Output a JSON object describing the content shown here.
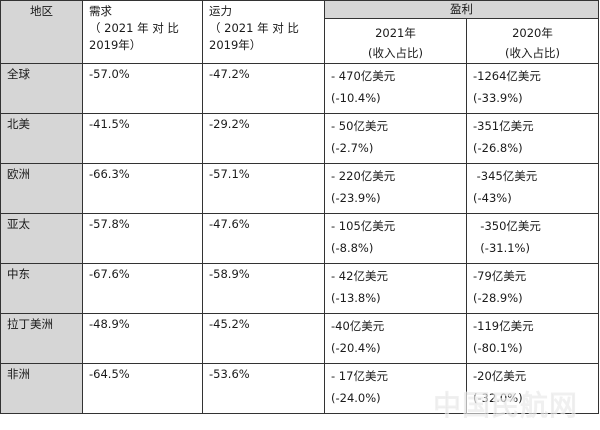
{
  "table": {
    "headers": {
      "region": "地区",
      "demand": "需求",
      "demand_sub_line1": "（ 2021 年 对 比",
      "demand_sub_line2": "2019年）",
      "capacity": "运力",
      "capacity_sub_line1": "（ 2021 年 对 比",
      "capacity_sub_line2": "2019年）",
      "profit": "盈利",
      "year_2021": "2021年",
      "year_2021_sub": "(收入占比)",
      "year_2020": "2020年",
      "year_2020_sub": "(收入占比)"
    },
    "rows": [
      {
        "region": "全球",
        "demand": "-57.0%",
        "capacity": "-47.2%",
        "p2021": "- 470亿美元",
        "p2021_share": "(-10.4%)",
        "p2020": "-1264亿美元",
        "p2020_share": "(-33.9%)"
      },
      {
        "region": "北美",
        "demand": "-41.5%",
        "capacity": "-29.2%",
        "p2021": "- 50亿美元",
        "p2021_share": "(-2.7%)",
        "p2020": "-351亿美元",
        "p2020_share": "(-26.8%)"
      },
      {
        "region": "欧洲",
        "demand": "-66.3%",
        "capacity": "-57.1%",
        "p2021": "- 220亿美元",
        "p2021_share": "(-23.9%)",
        "p2020": " -345亿美元",
        "p2020_share": "(-43%)"
      },
      {
        "region": "亚太",
        "demand": "-57.8%",
        "capacity": "-47.6%",
        "p2021": "- 105亿美元",
        "p2021_share": "(-8.8%)",
        "p2020": "  -350亿美元",
        "p2020_share": "  (-31.1%)"
      },
      {
        "region": "中东",
        "demand": "-67.6%",
        "capacity": "-58.9%",
        "p2021": "- 42亿美元",
        "p2021_share": "(-13.8%)",
        "p2020": "-79亿美元",
        "p2020_share": "(-28.9%)"
      },
      {
        "region": "拉丁美洲",
        "demand": "-48.9%",
        "capacity": "-45.2%",
        "p2021": "-40亿美元",
        "p2021_share": "(-20.4%)",
        "p2020": "-119亿美元",
        "p2020_share": "(-80.1%)"
      },
      {
        "region": "非洲",
        "demand": "-64.5%",
        "capacity": "-53.6%",
        "p2021": "- 17亿美元",
        "p2021_share": "(-24.0%)",
        "p2020": "-20亿美元",
        "p2020_share": "(-32.0%)"
      }
    ]
  },
  "watermark": "中国民航网"
}
